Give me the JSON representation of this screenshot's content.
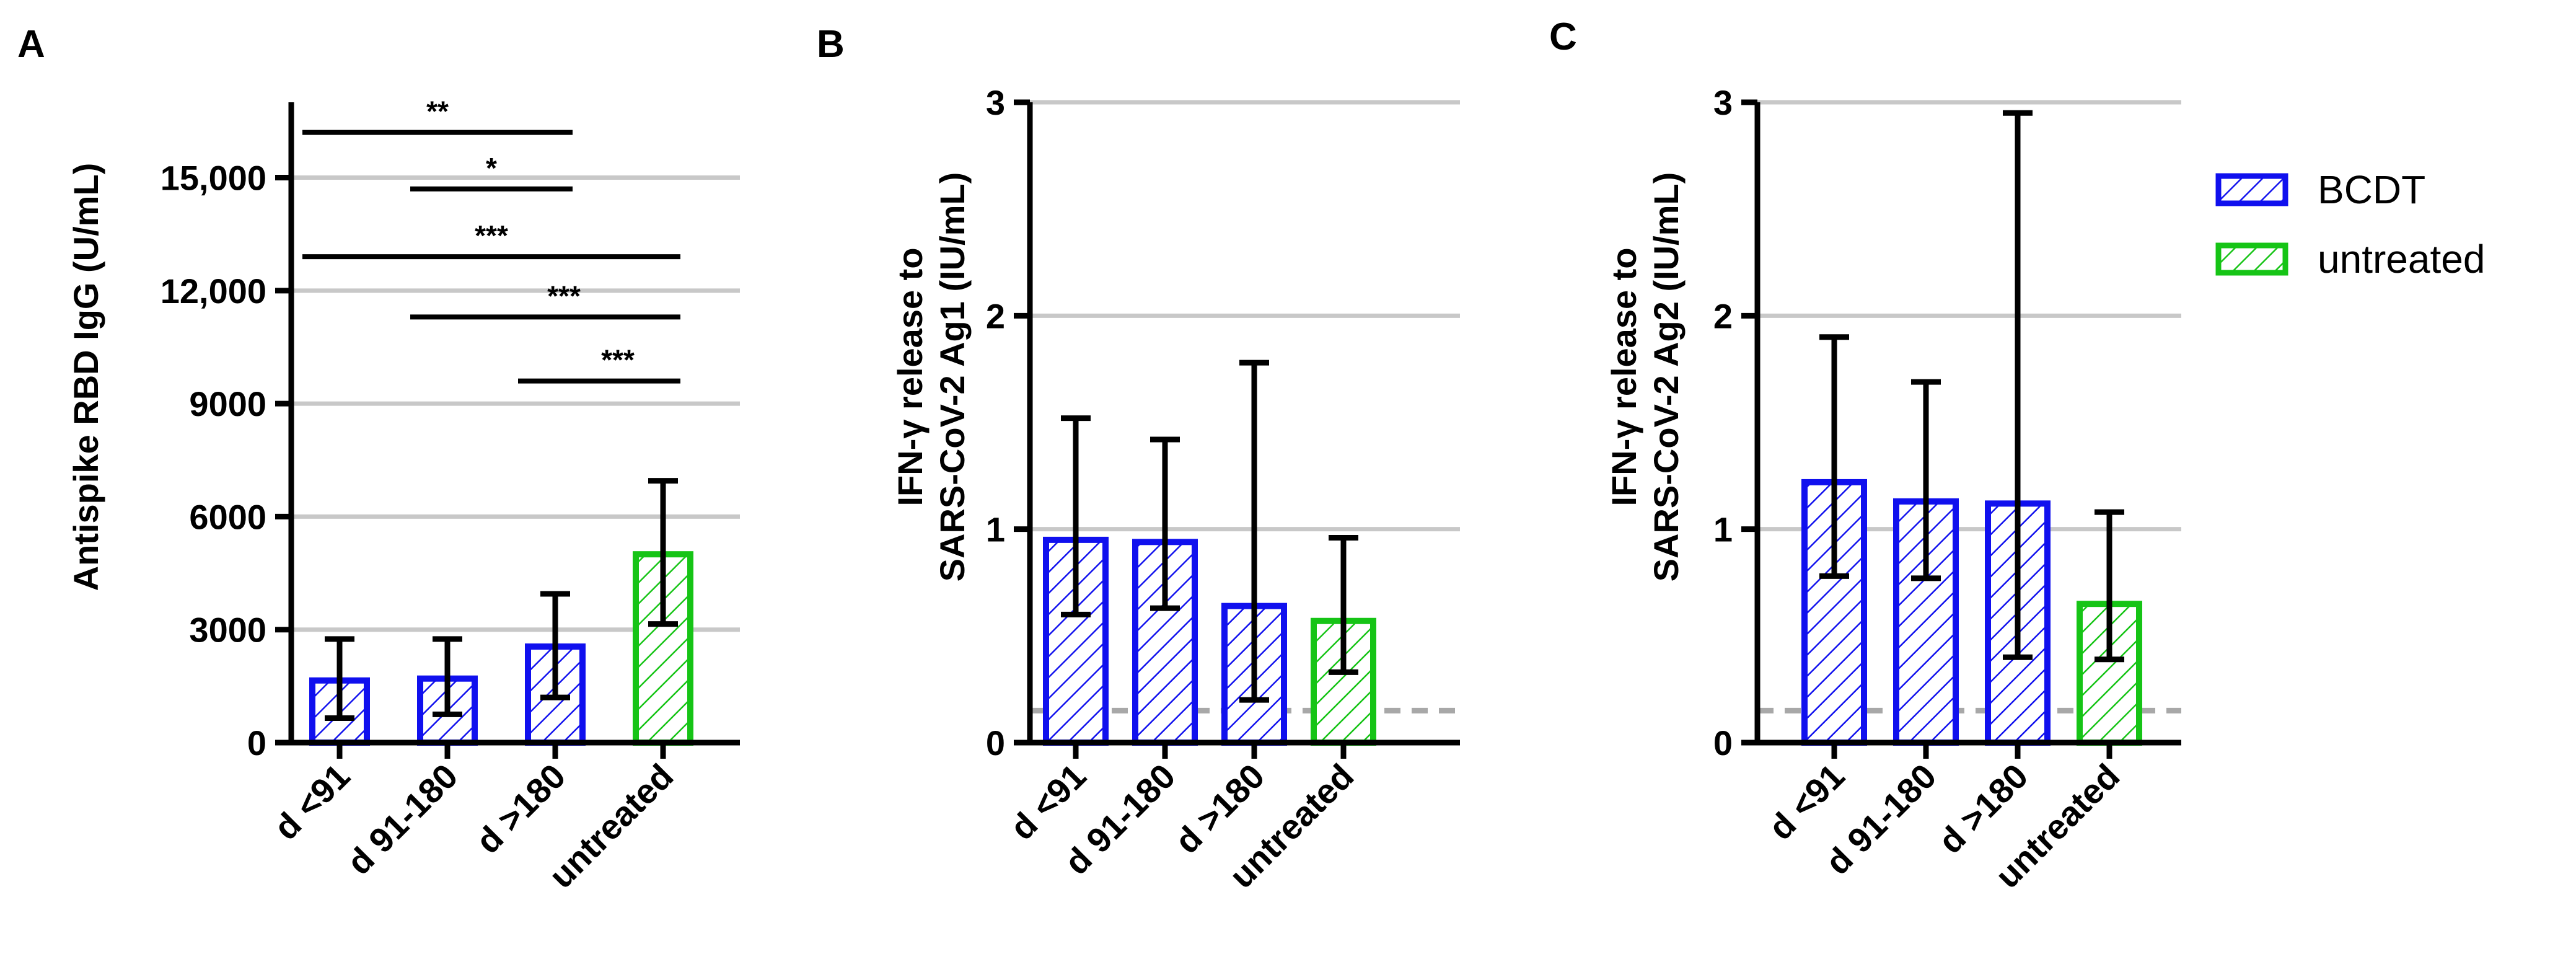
{
  "colors": {
    "bcdt": "#1010ee",
    "untreated": "#16c416",
    "grid": "#c8c8c8",
    "threshold": "#a8a8a8",
    "axis": "#000000"
  },
  "legend": {
    "items": [
      {
        "label": "BCDT",
        "group": "bcdt"
      },
      {
        "label": "untreated",
        "group": "untreated"
      }
    ]
  },
  "chart_data": [
    {
      "panel": "A",
      "type": "bar",
      "ylabel": "Antispike RBD IgG (U/mL)",
      "ylim": [
        0,
        17000
      ],
      "yticks": [
        0,
        3000,
        6000,
        9000,
        12000,
        15000
      ],
      "ytick_labels": [
        "0",
        "3000",
        "6000",
        "9000",
        "12,000",
        "15,000"
      ],
      "grid": true,
      "categories": [
        "d <91",
        "d 91-180",
        "d >180",
        "untreated"
      ],
      "groups": [
        "bcdt",
        "bcdt",
        "bcdt",
        "untreated"
      ],
      "values": [
        1650,
        1700,
        2550,
        5000
      ],
      "error_low": [
        650,
        750,
        1200,
        3150
      ],
      "error_high": [
        2750,
        2750,
        3950,
        6950
      ],
      "significance": [
        {
          "from": 0,
          "to": 2,
          "label": "**",
          "y": 16200
        },
        {
          "from": 1,
          "to": 2,
          "label": "*",
          "y": 14700
        },
        {
          "from": 0,
          "to": 3,
          "label": "***",
          "y": 12900
        },
        {
          "from": 1,
          "to": 3,
          "label": "***",
          "y": 11300
        },
        {
          "from": 2,
          "to": 3,
          "label": "***",
          "y": 9600
        }
      ]
    },
    {
      "panel": "B",
      "type": "bar",
      "ylabel": "IFN-γ release to SARS-CoV-2 Ag1 (IU/mL)",
      "ylabel_lines": [
        "IFN-γ release to",
        "SARS-CoV-2 Ag1 (IU/mL)"
      ],
      "ylim": [
        0,
        3
      ],
      "yticks": [
        0,
        1,
        2,
        3
      ],
      "ytick_labels": [
        "0",
        "1",
        "2",
        "3"
      ],
      "grid": true,
      "threshold": 0.15,
      "categories": [
        "d <91",
        "d 91-180",
        "d >180",
        "untreated"
      ],
      "groups": [
        "bcdt",
        "bcdt",
        "bcdt",
        "untreated"
      ],
      "values": [
        0.95,
        0.94,
        0.64,
        0.57
      ],
      "error_low": [
        0.6,
        0.63,
        0.2,
        0.33
      ],
      "error_high": [
        1.52,
        1.42,
        1.78,
        0.96
      ]
    },
    {
      "panel": "C",
      "type": "bar",
      "ylabel": "IFN-γ release to SARS-CoV-2 Ag2 (IU/mL)",
      "ylabel_lines": [
        "IFN-γ release to",
        "SARS-CoV-2 Ag2 (IU/mL)"
      ],
      "ylim": [
        0,
        3
      ],
      "yticks": [
        0,
        1,
        2,
        3
      ],
      "ytick_labels": [
        "0",
        "1",
        "2",
        "3"
      ],
      "grid": true,
      "threshold": 0.15,
      "categories": [
        "d <91",
        "d 91-180",
        "d >180",
        "untreated"
      ],
      "groups": [
        "bcdt",
        "bcdt",
        "bcdt",
        "untreated"
      ],
      "values": [
        1.22,
        1.13,
        1.12,
        0.65
      ],
      "error_low": [
        0.78,
        0.77,
        0.4,
        0.39
      ],
      "error_high": [
        1.9,
        1.69,
        2.95,
        1.08
      ]
    }
  ]
}
